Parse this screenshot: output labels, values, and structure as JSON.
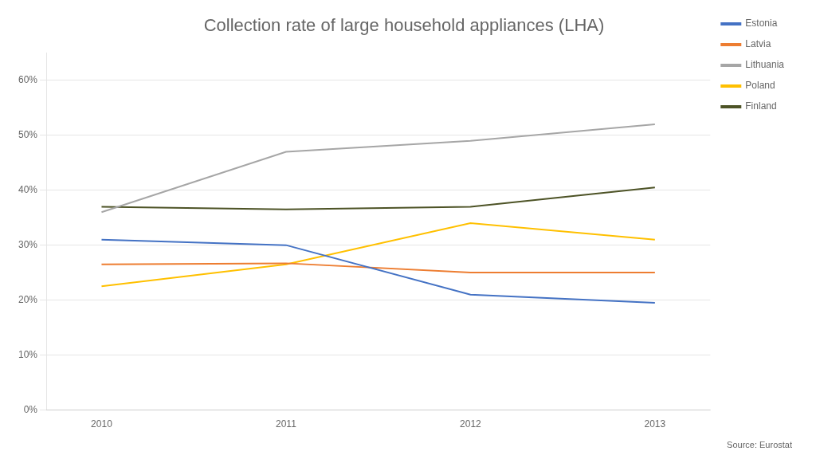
{
  "chart_data": {
    "type": "line",
    "title": "Collection rate of large household appliances (LHA)",
    "annotation": "Source: Eurostat",
    "x": [
      2010,
      2011,
      2012,
      2013
    ],
    "series": [
      {
        "name": "Estonia",
        "color": "#4472C4",
        "values": [
          0.31,
          0.3,
          0.21,
          0.195
        ]
      },
      {
        "name": "Latvia",
        "color": "#ED7D31",
        "values": [
          0.265,
          0.267,
          0.25,
          0.25
        ]
      },
      {
        "name": "Lithuania",
        "color": "#A6A6A6",
        "values": [
          0.36,
          0.47,
          0.49,
          0.52
        ]
      },
      {
        "name": "Poland",
        "color": "#FFC000",
        "values": [
          0.225,
          0.265,
          0.34,
          0.31
        ]
      },
      {
        "name": "Finland",
        "color": "#4D5326",
        "values": [
          0.37,
          0.365,
          0.37,
          0.405
        ]
      }
    ],
    "xlim": [
      2009.7,
      2013.3
    ],
    "xticks": [
      2010,
      2011,
      2012,
      2013
    ],
    "ylim": [
      0,
      0.65
    ],
    "yticks": [
      {
        "value": 0.0,
        "label": "0%"
      },
      {
        "value": 0.1,
        "label": "10%"
      },
      {
        "value": 0.2,
        "label": "20%"
      },
      {
        "value": 0.3,
        "label": "30%"
      },
      {
        "value": 0.4,
        "label": "40%"
      },
      {
        "value": 0.5,
        "label": "50%"
      },
      {
        "value": 0.6,
        "label": "60%"
      }
    ],
    "grid": true,
    "legend": "right"
  }
}
